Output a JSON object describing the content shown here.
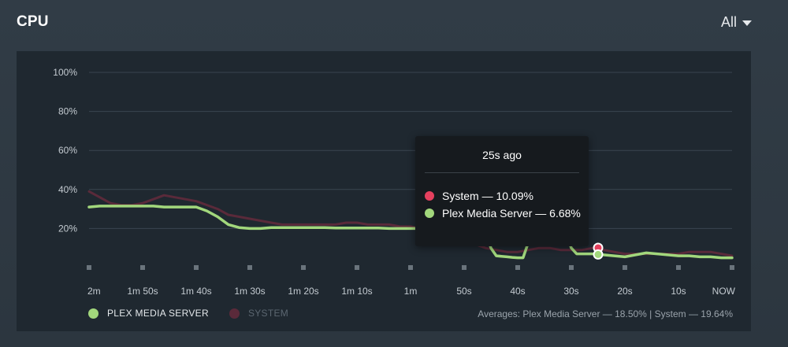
{
  "header": {
    "title": "CPU",
    "range_label": "All"
  },
  "colors": {
    "plex": "#a2d77c",
    "system": "#5a2a3a",
    "system_dot": "#e5405e",
    "grid": "#3a4550",
    "tick_label": "#c4cbd1",
    "panel_bg": "#1f2830"
  },
  "tooltip": {
    "title": "25s ago",
    "rows": [
      {
        "label": "System — 10.09%",
        "color": "#e5405e"
      },
      {
        "label": "Plex Media Server — 6.68%",
        "color": "#a2d77c"
      }
    ]
  },
  "legend": {
    "items": [
      {
        "label": "PLEX MEDIA SERVER",
        "color": "#a2d77c",
        "active": true
      },
      {
        "label": "SYSTEM",
        "color": "#5a2a3a",
        "active": false
      }
    ]
  },
  "averages": "Averages: Plex Media Server — 18.50% | System — 19.64%",
  "chart_data": {
    "type": "area",
    "x_unit": "seconds ago",
    "x_ticks": [
      {
        "label": "2m",
        "value": 120
      },
      {
        "label": "1m 50s",
        "value": 110
      },
      {
        "label": "1m 40s",
        "value": 100
      },
      {
        "label": "1m 30s",
        "value": 90
      },
      {
        "label": "1m 20s",
        "value": 80
      },
      {
        "label": "1m 10s",
        "value": 70
      },
      {
        "label": "1m",
        "value": 60
      },
      {
        "label": "50s",
        "value": 50
      },
      {
        "label": "40s",
        "value": 40
      },
      {
        "label": "30s",
        "value": 30
      },
      {
        "label": "20s",
        "value": 20
      },
      {
        "label": "10s",
        "value": 10
      },
      {
        "label": "NOW",
        "value": 0
      }
    ],
    "y_ticks": [
      "20%",
      "40%",
      "60%",
      "80%",
      "100%"
    ],
    "ylim": [
      0,
      100
    ],
    "grid": true,
    "highlight_x": 25,
    "series": [
      {
        "name": "System",
        "x": [
          120,
          118,
          116,
          114,
          112,
          110,
          108,
          106,
          104,
          102,
          100,
          98,
          96,
          94,
          92,
          90,
          88,
          86,
          84,
          82,
          80,
          78,
          76,
          74,
          72,
          70,
          68,
          66,
          64,
          62,
          60,
          58,
          56,
          54,
          52,
          50,
          48,
          46,
          44,
          42,
          40,
          38,
          36,
          34,
          32,
          30,
          28,
          26,
          25,
          24,
          22,
          20,
          18,
          16,
          14,
          12,
          10,
          8,
          6,
          4,
          2,
          0
        ],
        "y": [
          39,
          36,
          33,
          32,
          32,
          33,
          35,
          37,
          36,
          35,
          34,
          32,
          30,
          27,
          26,
          25,
          24,
          23,
          22,
          22,
          22,
          22,
          22,
          22,
          23,
          23,
          22,
          22,
          22,
          21,
          21,
          20,
          19,
          18,
          16,
          14,
          12,
          10,
          9,
          8,
          8,
          9,
          10,
          10,
          9,
          9,
          9,
          10,
          10.09,
          9,
          8,
          7,
          7,
          7,
          7,
          7,
          7,
          8,
          8,
          8,
          7,
          6
        ]
      },
      {
        "name": "Plex Media Server",
        "x": [
          120,
          118,
          116,
          114,
          112,
          110,
          108,
          106,
          104,
          102,
          100,
          98,
          96,
          94,
          92,
          90,
          88,
          86,
          84,
          82,
          80,
          78,
          76,
          74,
          72,
          70,
          68,
          66,
          64,
          62,
          60,
          58,
          56,
          54,
          52,
          50,
          48,
          46,
          45,
          44,
          42,
          41,
          40,
          39,
          38,
          37,
          36,
          34,
          32,
          31,
          30,
          29,
          28,
          26,
          25,
          24,
          22,
          20,
          18,
          16,
          14,
          12,
          10,
          8,
          6,
          4,
          2,
          0
        ],
        "y": [
          31,
          31.5,
          31.5,
          31.5,
          31.5,
          31.5,
          31.5,
          31,
          31,
          31,
          31,
          29,
          26,
          22,
          20.5,
          20,
          20,
          20.5,
          20.5,
          20.5,
          20.5,
          20.5,
          20.5,
          20.3,
          20.3,
          20.3,
          20.3,
          20.3,
          20,
          20,
          20,
          20,
          20,
          20,
          20,
          20,
          21,
          18,
          10,
          6,
          5.5,
          5.2,
          5,
          5,
          13,
          22,
          28,
          30,
          25,
          18,
          10,
          7,
          7,
          7,
          6.68,
          6.5,
          6,
          5.5,
          6.5,
          7.5,
          7,
          6.5,
          6,
          6,
          5.5,
          5.5,
          5,
          5
        ]
      }
    ]
  }
}
